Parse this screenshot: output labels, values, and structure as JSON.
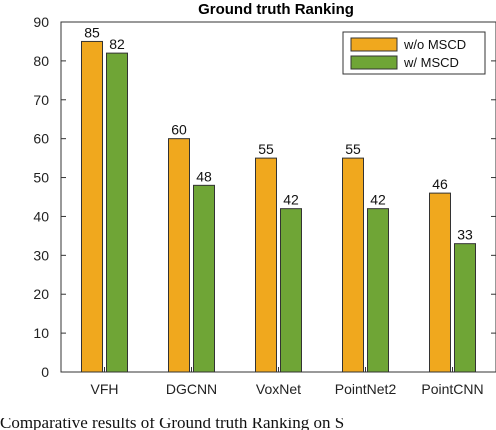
{
  "chart_data": {
    "type": "bar",
    "title": "Ground truth Ranking",
    "xlabel": "",
    "ylabel": "",
    "categories": [
      "VFH",
      "DGCNN",
      "VoxNet",
      "PointNet2",
      "PointCNN"
    ],
    "series": [
      {
        "name": "w/o MSCD",
        "color": "#F0A81E",
        "values": [
          85,
          60,
          55,
          55,
          46
        ]
      },
      {
        "name": "w/ MSCD",
        "color": "#6FA536",
        "values": [
          82,
          48,
          42,
          42,
          33
        ]
      }
    ],
    "ylim": [
      0,
      90
    ],
    "yticks": [
      0,
      10,
      20,
      30,
      40,
      50,
      60,
      70,
      80,
      90
    ],
    "grid": false,
    "legend_position": "top-right",
    "data_labels": true
  },
  "caption": "Comparative results of Ground truth Ranking on S"
}
